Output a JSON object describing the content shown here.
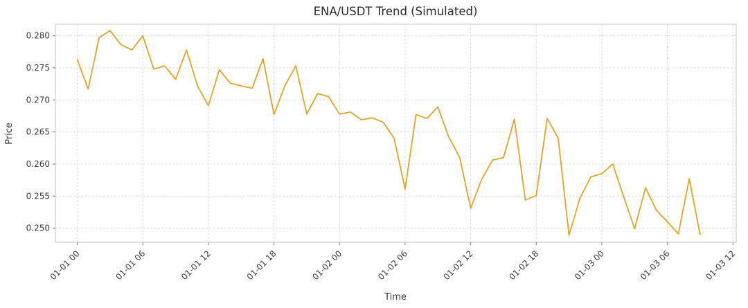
{
  "chart_data": {
    "type": "line",
    "title": "ENA/USDT Trend (Simulated)",
    "xlabel": "Time",
    "ylabel": "Price",
    "line_color": "#e0a426",
    "grid_color": "#cfcfcf",
    "grid": true,
    "grid_style": "dashed",
    "legend": "none",
    "ylim": [
      0.2478,
      0.2818
    ],
    "xlim": [
      -2,
      60.3
    ],
    "yticks": [
      0.25,
      0.255,
      0.26,
      0.265,
      0.27,
      0.275,
      0.28
    ],
    "xtick_positions": [
      0,
      6,
      12,
      18,
      24,
      30,
      36,
      42,
      48,
      54,
      60
    ],
    "xtick_labels": [
      "01-01 00",
      "01-01 06",
      "01-01 12",
      "01-01 18",
      "01-02 00",
      "01-02 06",
      "01-02 12",
      "01-02 18",
      "01-03 00",
      "01-03 06",
      "01-03 12"
    ],
    "x_unit_hours_per_point": 1,
    "values": [
      0.2763,
      0.2717,
      0.2797,
      0.2808,
      0.2786,
      0.2778,
      0.28,
      0.2748,
      0.2753,
      0.2732,
      0.2778,
      0.2722,
      0.2691,
      0.2747,
      0.2726,
      0.2722,
      0.2718,
      0.2764,
      0.2677,
      0.2722,
      0.2753,
      0.2678,
      0.271,
      0.2705,
      0.2678,
      0.2681,
      0.2669,
      0.2672,
      0.2665,
      0.264,
      0.2561,
      0.2677,
      0.2671,
      0.2689,
      0.2642,
      0.261,
      0.2531,
      0.2576,
      0.2606,
      0.261,
      0.267,
      0.2544,
      0.2551,
      0.2671,
      0.2641,
      0.2489,
      0.2547,
      0.258,
      0.2585,
      0.26,
      0.2549,
      0.2499,
      0.2563,
      0.2528,
      0.251,
      0.2491,
      0.2577,
      0.249
    ]
  }
}
